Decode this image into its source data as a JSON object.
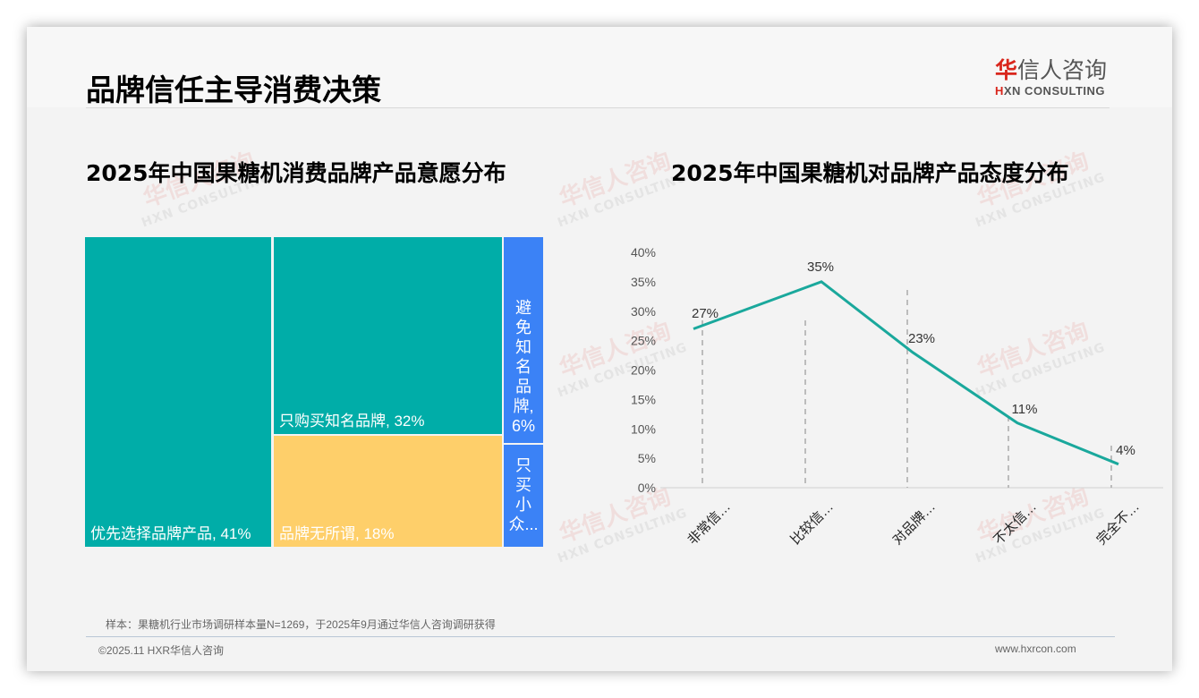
{
  "header": {
    "title": "品牌信任主导消费决策",
    "logo": {
      "cn_first": "华",
      "cn_rest": "信人咨询",
      "en_mark": "H",
      "en_rest": "XN CONSULTING"
    }
  },
  "watermark": {
    "cn": "华信人咨询",
    "en": "HXN CONSULTING"
  },
  "left_chart": {
    "title": "2025年中国果糖机消费品牌产品意愿分布",
    "cells": [
      {
        "label": "优先选择品牌产品, 41%",
        "color": "#00ada8"
      },
      {
        "label": "只购买知名品牌, 32%",
        "color": "#00ada8"
      },
      {
        "label": "品牌无所谓, 18%",
        "color": "#fecf6a"
      },
      {
        "label_lines": [
          "避",
          "免",
          "知",
          "名",
          "品",
          "牌,",
          "6%"
        ],
        "color": "#3b82f6"
      },
      {
        "label_lines": [
          "只",
          "买",
          "小",
          "众..."
        ],
        "color": "#3b82f6"
      }
    ]
  },
  "right_chart": {
    "title": "2025年中国果糖机对品牌产品态度分布",
    "line_color": "#1aa89c"
  },
  "chart_data": [
    {
      "type": "treemap",
      "title": "2025年中国果糖机消费品牌产品意愿分布",
      "categories": [
        "优先选择品牌产品",
        "只购买知名品牌",
        "品牌无所谓",
        "避免知名品牌",
        "只买小众品牌"
      ],
      "values": [
        41,
        32,
        18,
        6,
        3
      ],
      "unit": "%"
    },
    {
      "type": "line",
      "title": "2025年中国果糖机对品牌产品态度分布",
      "categories": [
        "非常信…",
        "比较信…",
        "对品牌…",
        "不太信…",
        "完全不…"
      ],
      "values": [
        27,
        35,
        23,
        11,
        4
      ],
      "data_labels": [
        "27%",
        "35%",
        "23%",
        "11%",
        "4%"
      ],
      "yticks": [
        "0%",
        "5%",
        "10%",
        "15%",
        "20%",
        "25%",
        "30%",
        "35%",
        "40%"
      ],
      "ylim": [
        0,
        40
      ],
      "xlabel": "",
      "ylabel": "",
      "grid": false,
      "legend": "none"
    }
  ],
  "footer": {
    "sample_note": "样本：果糖机行业市场调研样本量N=1269，于2025年9月通过华信人咨询调研获得",
    "copyright": "©2025.11 HXR华信人咨询",
    "website": "www.hxrcon.com"
  }
}
